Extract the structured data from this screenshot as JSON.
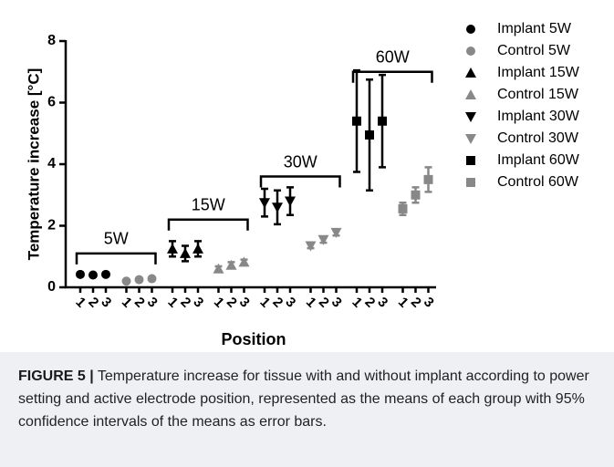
{
  "chart_data": {
    "type": "scatter",
    "ylabel": "Temperature increase [°C]",
    "xlabel": "Position",
    "categories": [
      "1",
      "2",
      "3"
    ],
    "ylim": [
      0,
      8
    ],
    "yticks": [
      0,
      2,
      4,
      6,
      8
    ],
    "brackets": [
      "5W",
      "15W",
      "30W",
      "60W"
    ],
    "series": [
      {
        "name": "Implant 5W",
        "color": "#000000",
        "marker": "circle",
        "values": [
          0.42,
          0.4,
          0.42
        ],
        "errors": [
          0.05,
          0.05,
          0.05
        ]
      },
      {
        "name": "Control 5W",
        "color": "#888888",
        "marker": "circle",
        "values": [
          0.2,
          0.25,
          0.28
        ],
        "errors": [
          0.03,
          0.03,
          0.03
        ]
      },
      {
        "name": "Implant 15W",
        "color": "#000000",
        "marker": "triangle",
        "values": [
          1.25,
          1.1,
          1.25
        ],
        "errors": [
          0.25,
          0.25,
          0.25
        ]
      },
      {
        "name": "Control 15W",
        "color": "#888888",
        "marker": "triangle",
        "values": [
          0.6,
          0.72,
          0.82
        ],
        "errors": [
          0.08,
          0.1,
          0.08
        ]
      },
      {
        "name": "Implant 30W",
        "color": "#000000",
        "marker": "triangle-down",
        "values": [
          2.75,
          2.6,
          2.8
        ],
        "errors": [
          0.45,
          0.55,
          0.45
        ]
      },
      {
        "name": "Control 30W",
        "color": "#888888",
        "marker": "triangle-down",
        "values": [
          1.35,
          1.55,
          1.78
        ],
        "errors": [
          0.08,
          0.1,
          0.1
        ]
      },
      {
        "name": "Implant 60W",
        "color": "#000000",
        "marker": "square",
        "values": [
          5.4,
          4.95,
          5.4
        ],
        "errors": [
          1.65,
          1.8,
          1.5
        ]
      },
      {
        "name": "Control 60W",
        "color": "#888888",
        "marker": "square",
        "values": [
          2.55,
          3.0,
          3.5
        ],
        "errors": [
          0.2,
          0.25,
          0.4
        ]
      }
    ]
  },
  "caption": {
    "label": "FIGURE 5 |",
    "text": "Temperature increase for tissue with and without implant according to power setting and active electrode position, represented as the means of each group with 95% confidence intervals of the means as error bars."
  }
}
